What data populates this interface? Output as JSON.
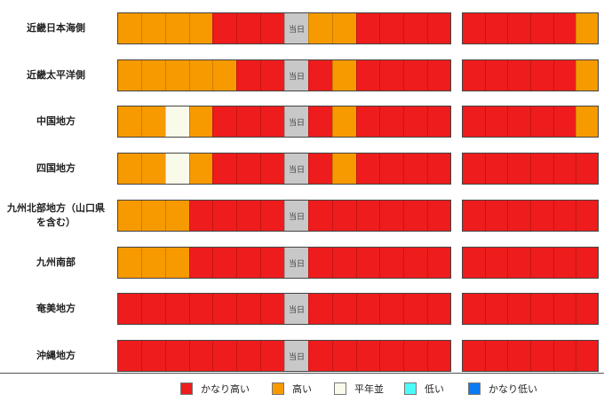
{
  "chart_data": {
    "type": "heatmap",
    "today_label": "当日",
    "today_index": 7,
    "levels": [
      {
        "key": "VH",
        "name": "かなり高い",
        "color": "#ee1c1c"
      },
      {
        "key": "H",
        "name": "高い",
        "color": "#f79a00"
      },
      {
        "key": "N",
        "name": "平年並",
        "color": "#fafaea"
      },
      {
        "key": "L",
        "name": "低い",
        "color": "#4dfafa"
      },
      {
        "key": "VL",
        "name": "かなり低い",
        "color": "#0a7bf5"
      }
    ],
    "rows": [
      {
        "region": "近畿日本海側",
        "left": [
          "H",
          "H",
          "H",
          "H",
          "VH",
          "VH",
          "VH",
          "T",
          "H",
          "H",
          "VH",
          "VH",
          "VH",
          "VH"
        ],
        "right": [
          "VH",
          "VH",
          "VH",
          "VH",
          "VH",
          "H"
        ]
      },
      {
        "region": "近畿太平洋側",
        "left": [
          "H",
          "H",
          "H",
          "H",
          "H",
          "VH",
          "VH",
          "T",
          "VH",
          "H",
          "VH",
          "VH",
          "VH",
          "VH"
        ],
        "right": [
          "VH",
          "VH",
          "VH",
          "VH",
          "VH",
          "H"
        ]
      },
      {
        "region": "中国地方",
        "left": [
          "H",
          "H",
          "N",
          "H",
          "VH",
          "VH",
          "VH",
          "T",
          "VH",
          "H",
          "VH",
          "VH",
          "VH",
          "VH"
        ],
        "right": [
          "VH",
          "VH",
          "VH",
          "VH",
          "VH",
          "H"
        ]
      },
      {
        "region": "四国地方",
        "left": [
          "H",
          "H",
          "N",
          "H",
          "VH",
          "VH",
          "VH",
          "T",
          "VH",
          "H",
          "VH",
          "VH",
          "VH",
          "VH"
        ],
        "right": [
          "VH",
          "VH",
          "VH",
          "VH",
          "VH",
          "VH"
        ]
      },
      {
        "region": "九州北部地方（山口県を含む）",
        "left": [
          "H",
          "H",
          "H",
          "VH",
          "VH",
          "VH",
          "VH",
          "T",
          "VH",
          "VH",
          "VH",
          "VH",
          "VH",
          "VH"
        ],
        "right": [
          "VH",
          "VH",
          "VH",
          "VH",
          "VH",
          "VH"
        ]
      },
      {
        "region": "九州南部",
        "left": [
          "H",
          "H",
          "H",
          "VH",
          "VH",
          "VH",
          "VH",
          "T",
          "VH",
          "VH",
          "VH",
          "VH",
          "VH",
          "VH"
        ],
        "right": [
          "VH",
          "VH",
          "VH",
          "VH",
          "VH",
          "VH"
        ]
      },
      {
        "region": "奄美地方",
        "left": [
          "VH",
          "VH",
          "VH",
          "VH",
          "VH",
          "VH",
          "VH",
          "T",
          "VH",
          "VH",
          "VH",
          "VH",
          "VH",
          "VH"
        ],
        "right": [
          "VH",
          "VH",
          "VH",
          "VH",
          "VH",
          "VH"
        ]
      },
      {
        "region": "沖縄地方",
        "left": [
          "VH",
          "VH",
          "VH",
          "VH",
          "VH",
          "VH",
          "VH",
          "T",
          "VH",
          "VH",
          "VH",
          "VH",
          "VH",
          "VH"
        ],
        "right": [
          "VH",
          "VH",
          "VH",
          "VH",
          "VH",
          "VH"
        ]
      }
    ],
    "today_color": "#c8c8c8",
    "legend_placement": "bottom"
  }
}
